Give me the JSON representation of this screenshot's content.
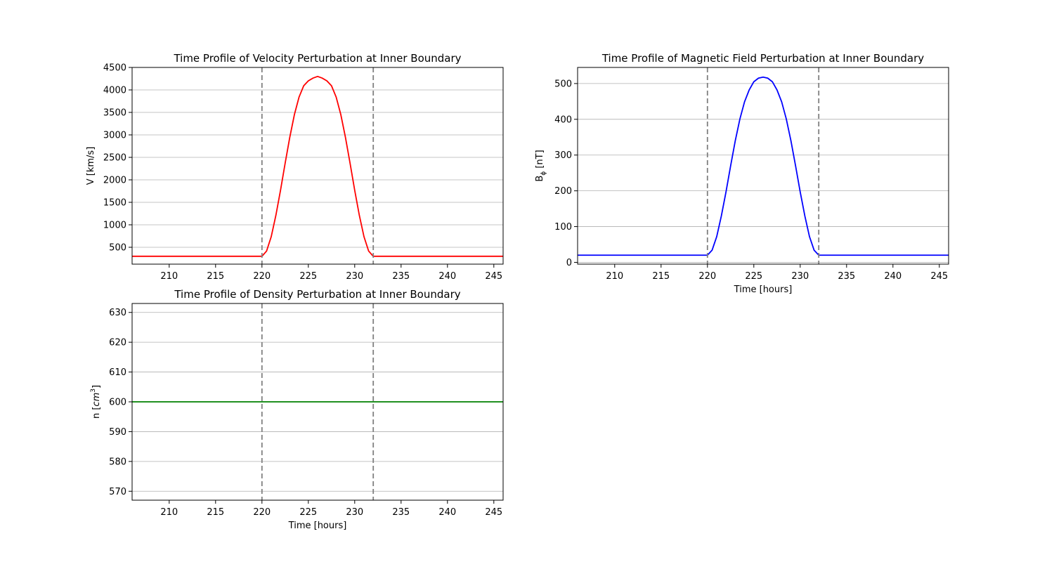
{
  "chart_data": [
    {
      "type": "line",
      "title": "Time Profile of Velocity Perturbation at Inner Boundary",
      "xlabel": "",
      "ylabel": "V [km/s]",
      "xlim": [
        206,
        246
      ],
      "ylim": [
        125,
        4500
      ],
      "xticks": [
        210,
        215,
        220,
        225,
        230,
        235,
        240,
        245
      ],
      "yticks": [
        500,
        1000,
        1500,
        2000,
        2500,
        3000,
        3500,
        4000,
        4500
      ],
      "grid": "y",
      "color": "#ff0000",
      "vlines": [
        220,
        232
      ],
      "series": [
        {
          "x": [
            206,
            208,
            210,
            212,
            214,
            216,
            218,
            220,
            220.5,
            221,
            221.5,
            222,
            222.5,
            223,
            223.5,
            224,
            224.5,
            225,
            225.5,
            226,
            226.5,
            227,
            227.5,
            228,
            228.5,
            229,
            229.5,
            230,
            230.5,
            231,
            231.5,
            232,
            234,
            236,
            238,
            240,
            242,
            244,
            246
          ],
          "y": [
            300,
            300,
            300,
            300,
            300,
            300,
            300,
            300,
            417,
            736,
            1209,
            1767,
            2369,
            2946,
            3453,
            3842,
            4091,
            4201,
            4263,
            4300,
            4263,
            4201,
            4091,
            3842,
            3453,
            2946,
            2369,
            1767,
            1209,
            736,
            417,
            300,
            300,
            300,
            300,
            300,
            300,
            300,
            300
          ]
        }
      ]
    },
    {
      "type": "line",
      "title": "Time Profile of Magnetic Field Perturbation at Inner Boundary",
      "xlabel": "Time [hours]",
      "ylabel": "Bϕ [nT]",
      "ylabel_main": "B",
      "ylabel_sub": "ϕ",
      "ylabel_unit": " [nT]",
      "xlim": [
        206,
        246
      ],
      "ylim": [
        -5,
        545
      ],
      "xticks": [
        210,
        215,
        220,
        225,
        230,
        235,
        240,
        245
      ],
      "yticks": [
        0,
        100,
        200,
        300,
        400,
        500
      ],
      "grid": "y",
      "color": "#0000ff",
      "vlines": [
        220,
        232
      ],
      "series": [
        {
          "x": [
            206,
            208,
            210,
            212,
            214,
            216,
            218,
            220,
            220.5,
            221,
            221.5,
            222,
            222.5,
            223,
            223.5,
            224,
            224.5,
            225,
            225.5,
            226,
            226.5,
            227,
            227.5,
            228,
            228.5,
            229,
            229.5,
            230,
            230.5,
            231,
            231.5,
            232,
            234,
            236,
            238,
            240,
            242,
            244,
            246
          ],
          "y": [
            20,
            20,
            20,
            20,
            20,
            20,
            20,
            20,
            34,
            72,
            130,
            197,
            270,
            340,
            401,
            449,
            482,
            505,
            515,
            518,
            515,
            505,
            482,
            449,
            401,
            340,
            270,
            197,
            130,
            72,
            34,
            20,
            20,
            20,
            20,
            20,
            20,
            20,
            20
          ]
        }
      ]
    },
    {
      "type": "line",
      "title": "Time Profile of Density Perturbation at Inner Boundary",
      "xlabel": "Time [hours]",
      "ylabel": "n [cm3]",
      "ylabel_main": "n [",
      "ylabel_italic": "cm",
      "ylabel_sup": "3",
      "ylabel_end": "]",
      "xlim": [
        206,
        246
      ],
      "ylim": [
        567,
        633
      ],
      "xticks": [
        210,
        215,
        220,
        225,
        230,
        235,
        240,
        245
      ],
      "yticks": [
        570,
        580,
        590,
        600,
        610,
        620,
        630
      ],
      "grid": "y",
      "color": "#008000",
      "vlines": [
        220,
        232
      ],
      "series": [
        {
          "x": [
            206,
            246
          ],
          "y": [
            600,
            600
          ]
        }
      ]
    }
  ]
}
